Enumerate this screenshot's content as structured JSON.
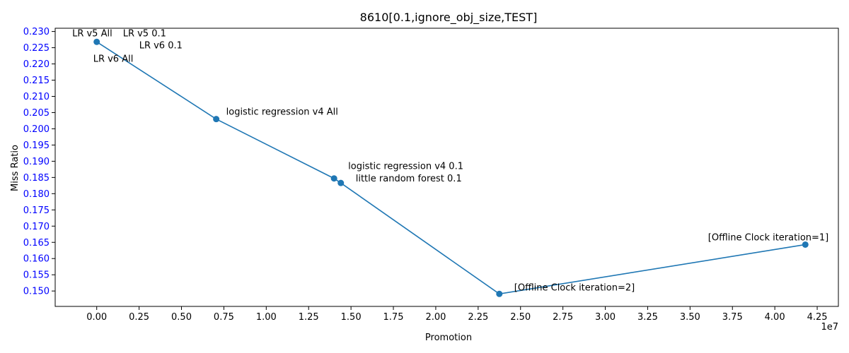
{
  "chart_data": {
    "type": "line",
    "title": "8610[0.1,ignore_obj_size,TEST]",
    "xlabel": "Promotion",
    "ylabel": "Miss Ratio",
    "x_offset_label": "1e7",
    "x_scale": 10000000,
    "xlim": [
      -2450000,
      43750000
    ],
    "ylim": [
      0.14525,
      0.231
    ],
    "x_ticks": [
      0,
      2500000,
      5000000,
      7500000,
      10000000,
      12500000,
      15000000,
      17500000,
      20000000,
      22500000,
      25000000,
      27500000,
      30000000,
      32500000,
      35000000,
      37500000,
      40000000,
      42500000
    ],
    "x_tick_labels": [
      "0.00",
      "0.25",
      "0.50",
      "0.75",
      "1.00",
      "1.25",
      "1.50",
      "1.75",
      "2.00",
      "2.25",
      "2.50",
      "2.75",
      "3.00",
      "3.25",
      "3.50",
      "3.75",
      "4.00",
      "4.25"
    ],
    "y_ticks": [
      0.15,
      0.155,
      0.16,
      0.165,
      0.17,
      0.175,
      0.18,
      0.185,
      0.19,
      0.195,
      0.2,
      0.205,
      0.21,
      0.215,
      0.22,
      0.225,
      0.23
    ],
    "y_tick_labels": [
      "0.150",
      "0.155",
      "0.160",
      "0.165",
      "0.170",
      "0.175",
      "0.180",
      "0.185",
      "0.190",
      "0.195",
      "0.200",
      "0.205",
      "0.210",
      "0.215",
      "0.220",
      "0.225",
      "0.230"
    ],
    "colors": {
      "line": "#1f77b4",
      "y_tick_text": "#0000ff",
      "x_tick_text": "#000000"
    },
    "grid": false,
    "series": [
      {
        "points": [
          {
            "x": 0,
            "y": 0.2268
          },
          {
            "x": 7050000,
            "y": 0.203
          },
          {
            "x": 14000000,
            "y": 0.1847
          },
          {
            "x": 14400000,
            "y": 0.1833
          },
          {
            "x": 23750000,
            "y": 0.1491
          },
          {
            "x": 41800000,
            "y": 0.1643
          }
        ]
      }
    ],
    "annotations": [
      {
        "text": "LR v5 All",
        "x": 0,
        "y": 0.2268,
        "anchor": "end",
        "dx": 22,
        "dy": -8
      },
      {
        "text": "LR v5 0.1",
        "x": 0,
        "y": 0.2268,
        "anchor": "start",
        "dx": 37,
        "dy": -8
      },
      {
        "text": "LR v6 0.1",
        "x": 0,
        "y": 0.2268,
        "anchor": "start",
        "dx": 60,
        "dy": 9
      },
      {
        "text": "LR v6 All",
        "x": 0,
        "y": 0.2268,
        "anchor": "start",
        "dx": -5,
        "dy": 28
      },
      {
        "text": "logistic regression v4 All",
        "x": 7050000,
        "y": 0.203,
        "anchor": "start",
        "dx": 14,
        "dy": -6
      },
      {
        "text": "logistic regression v4 0.1",
        "x": 14000000,
        "y": 0.1847,
        "anchor": "start",
        "dx": 20,
        "dy": -13
      },
      {
        "text": "little random forest 0.1",
        "x": 14400000,
        "y": 0.1833,
        "anchor": "start",
        "dx": 21,
        "dy": -2
      },
      {
        "text": "[Offline Clock iteration=2]",
        "x": 23750000,
        "y": 0.1491,
        "anchor": "start",
        "dx": 21,
        "dy": -5
      },
      {
        "text": "[Offline Clock iteration=1]",
        "x": 41800000,
        "y": 0.1643,
        "anchor": "end",
        "dx": 33,
        "dy": -6
      }
    ]
  }
}
